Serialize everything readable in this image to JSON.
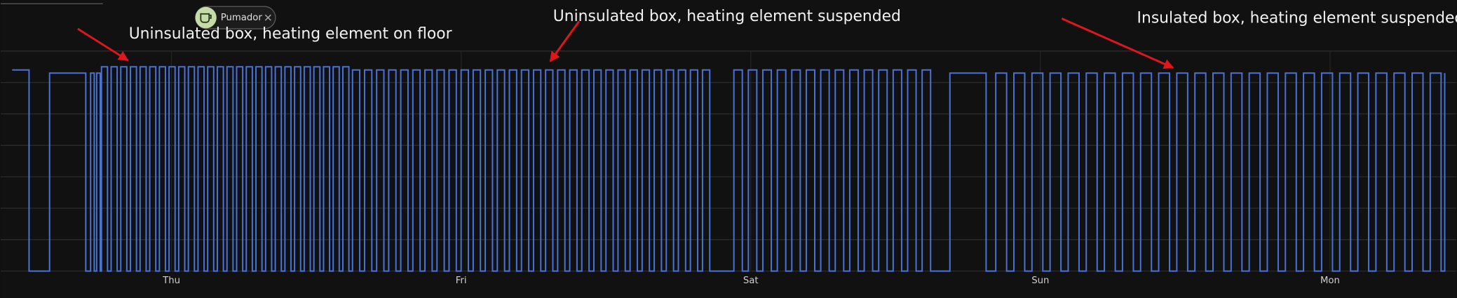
{
  "chart_data": {
    "type": "line",
    "step": true,
    "series": [
      {
        "name": "Pumador",
        "color": "#4a72d6",
        "x": [
          10.8,
          12.2,
          13.9,
          16.9,
          17.3,
          17.6,
          17.8,
          18.1,
          18.2,
          18.7,
          19.0,
          19.5,
          19.8,
          20.3,
          20.6,
          21.1,
          21.4,
          21.9,
          22.2,
          22.7,
          23.0,
          23.5,
          23.8,
          24.3,
          24.6,
          25.1,
          25.4,
          25.9,
          26.2,
          26.7,
          27.0,
          27.5,
          27.8,
          28.3,
          28.6,
          29.1,
          29.4,
          29.9,
          30.2,
          30.7,
          31.0,
          31.5,
          31.8,
          32.3,
          32.6,
          33.1,
          33.4,
          33.9,
          34.2,
          34.7,
          35.0,
          35.5,
          35.8,
          36.3,
          36.6,
          37.1,
          37.4,
          37.9,
          38.2,
          38.7,
          39.0,
          39.6,
          40.0,
          40.6,
          41.0,
          41.6,
          42.0,
          42.6,
          43.0,
          43.6,
          44.0,
          44.6,
          45.0,
          45.6,
          46.0,
          46.6,
          47.0,
          47.6,
          48.0,
          48.6,
          49.0,
          49.6,
          50.0,
          50.6,
          51.0,
          51.6,
          52.0,
          52.6,
          53.0,
          53.6,
          54.0,
          54.6,
          55.0,
          55.6,
          56.0,
          56.6,
          57.0,
          57.6,
          58.0,
          58.6,
          59.0,
          59.6,
          60.0,
          60.6,
          61.0,
          61.6,
          62.0,
          62.6,
          63.0,
          63.6,
          64.0,
          64.6,
          65.0,
          65.6,
          66.0,
          66.6,
          67.0,
          67.6,
          68.0,
          68.6,
          70.6,
          71.3,
          71.8,
          72.5,
          73.0,
          73.7,
          74.2,
          74.9,
          75.4,
          76.1,
          76.6,
          77.3,
          77.8,
          78.5,
          79.0,
          79.7,
          80.2,
          80.9,
          81.4,
          82.1,
          82.6,
          83.3,
          83.8,
          84.5,
          85.0,
          85.7,
          86.2,
          86.9,
          88.5,
          91.5,
          92.3,
          93.2,
          93.8,
          94.7,
          95.3,
          96.2,
          96.8,
          97.7,
          98.3,
          99.2,
          99.8,
          100.7,
          101.3,
          102.2,
          102.8,
          103.7,
          104.3,
          105.2,
          105.8,
          106.7,
          107.3,
          108.2,
          108.8,
          109.7,
          110.3,
          111.2,
          111.8,
          112.7,
          113.3,
          114.2,
          114.8,
          115.7,
          116.3,
          117.2,
          117.8,
          118.7,
          119.3,
          120.2,
          120.8,
          121.7,
          122.3,
          123.2,
          123.8,
          124.7,
          125.3,
          126.2,
          126.8,
          127.7,
          128.3,
          129.2,
          129.5
        ],
        "values": [
          6.4,
          0,
          6.3,
          0,
          6.3,
          0,
          6.3,
          0,
          6.5,
          0,
          6.5,
          0,
          6.5,
          0,
          6.5,
          0,
          6.5,
          0,
          6.5,
          0,
          6.5,
          0,
          6.5,
          0,
          6.5,
          0,
          6.5,
          0,
          6.5,
          0,
          6.5,
          0,
          6.5,
          0,
          6.5,
          0,
          6.5,
          0,
          6.5,
          0,
          6.5,
          0,
          6.5,
          0,
          6.5,
          0,
          6.5,
          0,
          6.5,
          0,
          6.5,
          0,
          6.5,
          0,
          6.5,
          0,
          6.5,
          0,
          6.5,
          0,
          6.4,
          0,
          6.4,
          0,
          6.4,
          0,
          6.4,
          0,
          6.4,
          0,
          6.4,
          0,
          6.4,
          0,
          6.4,
          0,
          6.4,
          0,
          6.4,
          0,
          6.4,
          0,
          6.4,
          0,
          6.4,
          0,
          6.4,
          0,
          6.4,
          0,
          6.4,
          0,
          6.4,
          0,
          6.4,
          0,
          6.4,
          0,
          6.4,
          0,
          6.4,
          0,
          6.4,
          0,
          6.4,
          0,
          6.4,
          0,
          6.4,
          0,
          6.4,
          0,
          6.4,
          0,
          6.4,
          0,
          6.4,
          0,
          6.4,
          0,
          6.4,
          0,
          6.4,
          0,
          6.4,
          0,
          6.4,
          0,
          6.4,
          0,
          6.4,
          0,
          6.4,
          0,
          6.4,
          0,
          6.4,
          0,
          6.4,
          0,
          6.4,
          0,
          6.4,
          0,
          6.4,
          0,
          6.4,
          0,
          6.3,
          0,
          6.3,
          0,
          6.3,
          0,
          6.3,
          0,
          6.3,
          0,
          6.3,
          0,
          6.3,
          0,
          6.3,
          0,
          6.3,
          0,
          6.3,
          0,
          6.3,
          0,
          6.3,
          0,
          6.3,
          0,
          6.3,
          0,
          6.3,
          0,
          6.3,
          0,
          6.3,
          0,
          6.3,
          0,
          6.3,
          0,
          6.3,
          0,
          6.3,
          0,
          6.3,
          0,
          6.3,
          0,
          6.3,
          0,
          6.3,
          0,
          6.3,
          0,
          6.3
        ]
      }
    ],
    "xlim": [
      9.85,
      130.46
    ],
    "xticks": [
      {
        "value": 24,
        "label": "Thu"
      },
      {
        "value": 48,
        "label": "Fri"
      },
      {
        "value": 72,
        "label": "Sat"
      },
      {
        "value": 96,
        "label": "Sun"
      },
      {
        "value": 120,
        "label": "Mon"
      }
    ],
    "ylim": [
      0,
      7
    ],
    "yticks": [
      0,
      1,
      2,
      3,
      4,
      5,
      6,
      7
    ],
    "grid": true,
    "annotations": [
      "Uninsulated box, heating element on floor",
      "Uninsulated box, heating element suspended",
      "Insulated box, heating element suspended"
    ],
    "annotation_color": "#e0161b"
  }
}
